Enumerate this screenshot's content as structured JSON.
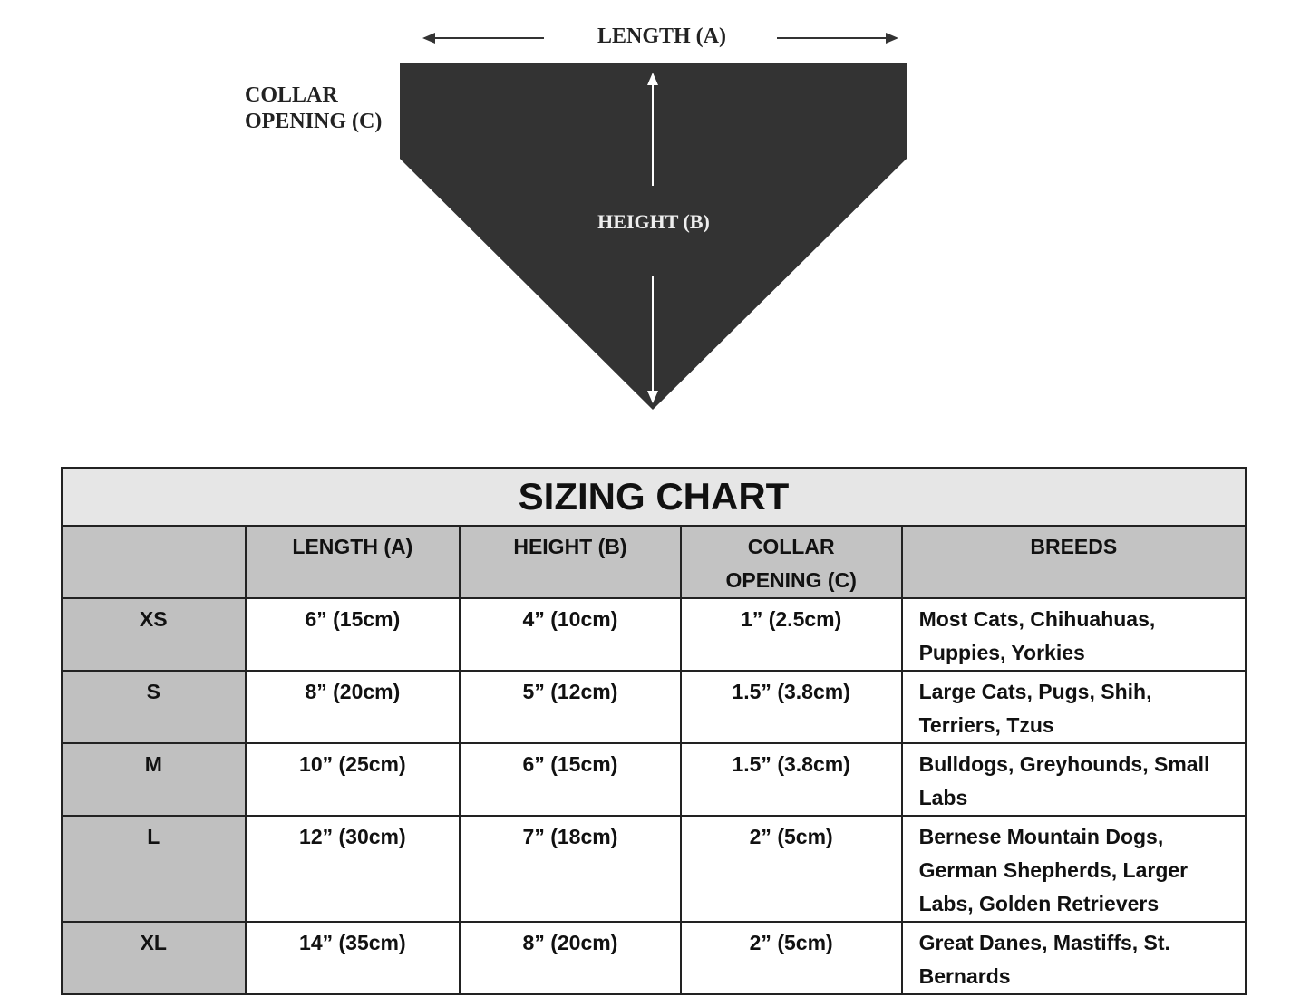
{
  "diagram": {
    "length_label": "LENGTH (A)",
    "height_label": "HEIGHT (B)",
    "collar_label_line1": "COLLAR",
    "collar_label_line2": "OPENING (C)",
    "fill_color": "#333333"
  },
  "table": {
    "title": "SIZING CHART",
    "headers": [
      "",
      "LENGTH (A)",
      "HEIGHT (B)",
      "COLLAR OPENING (C)",
      "BREEDS"
    ],
    "rows": [
      {
        "size": "XS",
        "length": "6” (15cm)",
        "height": "4” (10cm)",
        "collar": "1” (2.5cm)",
        "breeds": "Most Cats, Chihuahuas, Puppies, Yorkies"
      },
      {
        "size": "S",
        "length": "8” (20cm)",
        "height": "5” (12cm)",
        "collar": "1.5” (3.8cm)",
        "breeds": "Large Cats, Pugs, Shih, Terriers, Tzus"
      },
      {
        "size": "M",
        "length": "10” (25cm)",
        "height": "6” (15cm)",
        "collar": "1.5” (3.8cm)",
        "breeds": "Bulldogs, Greyhounds, Small Labs"
      },
      {
        "size": "L",
        "length": "12” (30cm)",
        "height": "7” (18cm)",
        "collar": "2” (5cm)",
        "breeds": "Bernese Mountain Dogs, German Shepherds, Larger Labs, Golden Retrievers"
      },
      {
        "size": "XL",
        "length": "14” (35cm)",
        "height": "8” (20cm)",
        "collar": "2” (5cm)",
        "breeds": "Great Danes, Mastiffs, St. Bernards"
      }
    ],
    "title_bg": "#e6e6e6",
    "header_bg": "#c3c3c3"
  }
}
